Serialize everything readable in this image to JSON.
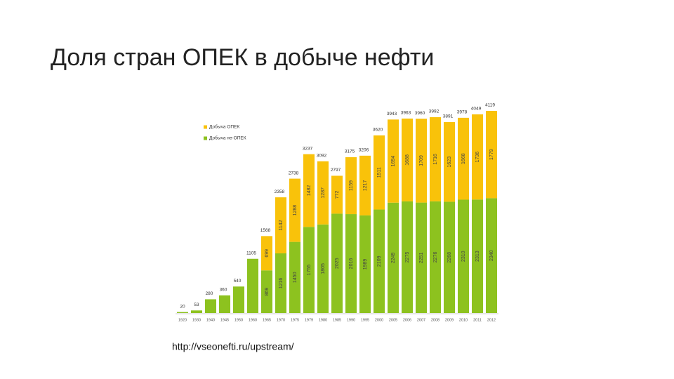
{
  "slide": {
    "title": "Доля стран ОПЕК  в добыче нефти",
    "source": "http://vseonefti.ru/upstream/"
  },
  "chart_data": {
    "type": "stacked-bar",
    "categories": [
      "1920",
      "1930",
      "1940",
      "1945",
      "1950",
      "1960",
      "1965",
      "1970",
      "1975",
      "1979",
      "1980",
      "1985",
      "1990",
      "1995",
      "2000",
      "2005",
      "2006",
      "2007",
      "2008",
      "2009",
      "2010",
      "2011",
      "2012"
    ],
    "series": [
      {
        "name": "Добыча не-ОПЕК",
        "color": "#8dc21f",
        "values": [
          20,
          53,
          280,
          360,
          540,
          1105,
          869,
          1216,
          1450,
          1755,
          1805,
          2025,
          2016,
          1989,
          2109,
          2249,
          2275,
          2251,
          2276,
          2268,
          2310,
          2313,
          2340
        ]
      },
      {
        "name": "Добыча ОПЕК",
        "color": "#f9c20a",
        "values": [
          null,
          null,
          null,
          null,
          null,
          null,
          699,
          1142,
          1288,
          1482,
          1287,
          772,
          1159,
          1217,
          1511,
          1694,
          1688,
          1709,
          1716,
          1623,
          1668,
          1736,
          1779
        ]
      }
    ],
    "totals": [
      20,
      53,
      280,
      360,
      540,
      1105,
      1568,
      2358,
      2738,
      3237,
      3092,
      2797,
      3175,
      3206,
      3620,
      3943,
      3963,
      3960,
      3992,
      3891,
      3978,
      4049,
      4119
    ]
  }
}
